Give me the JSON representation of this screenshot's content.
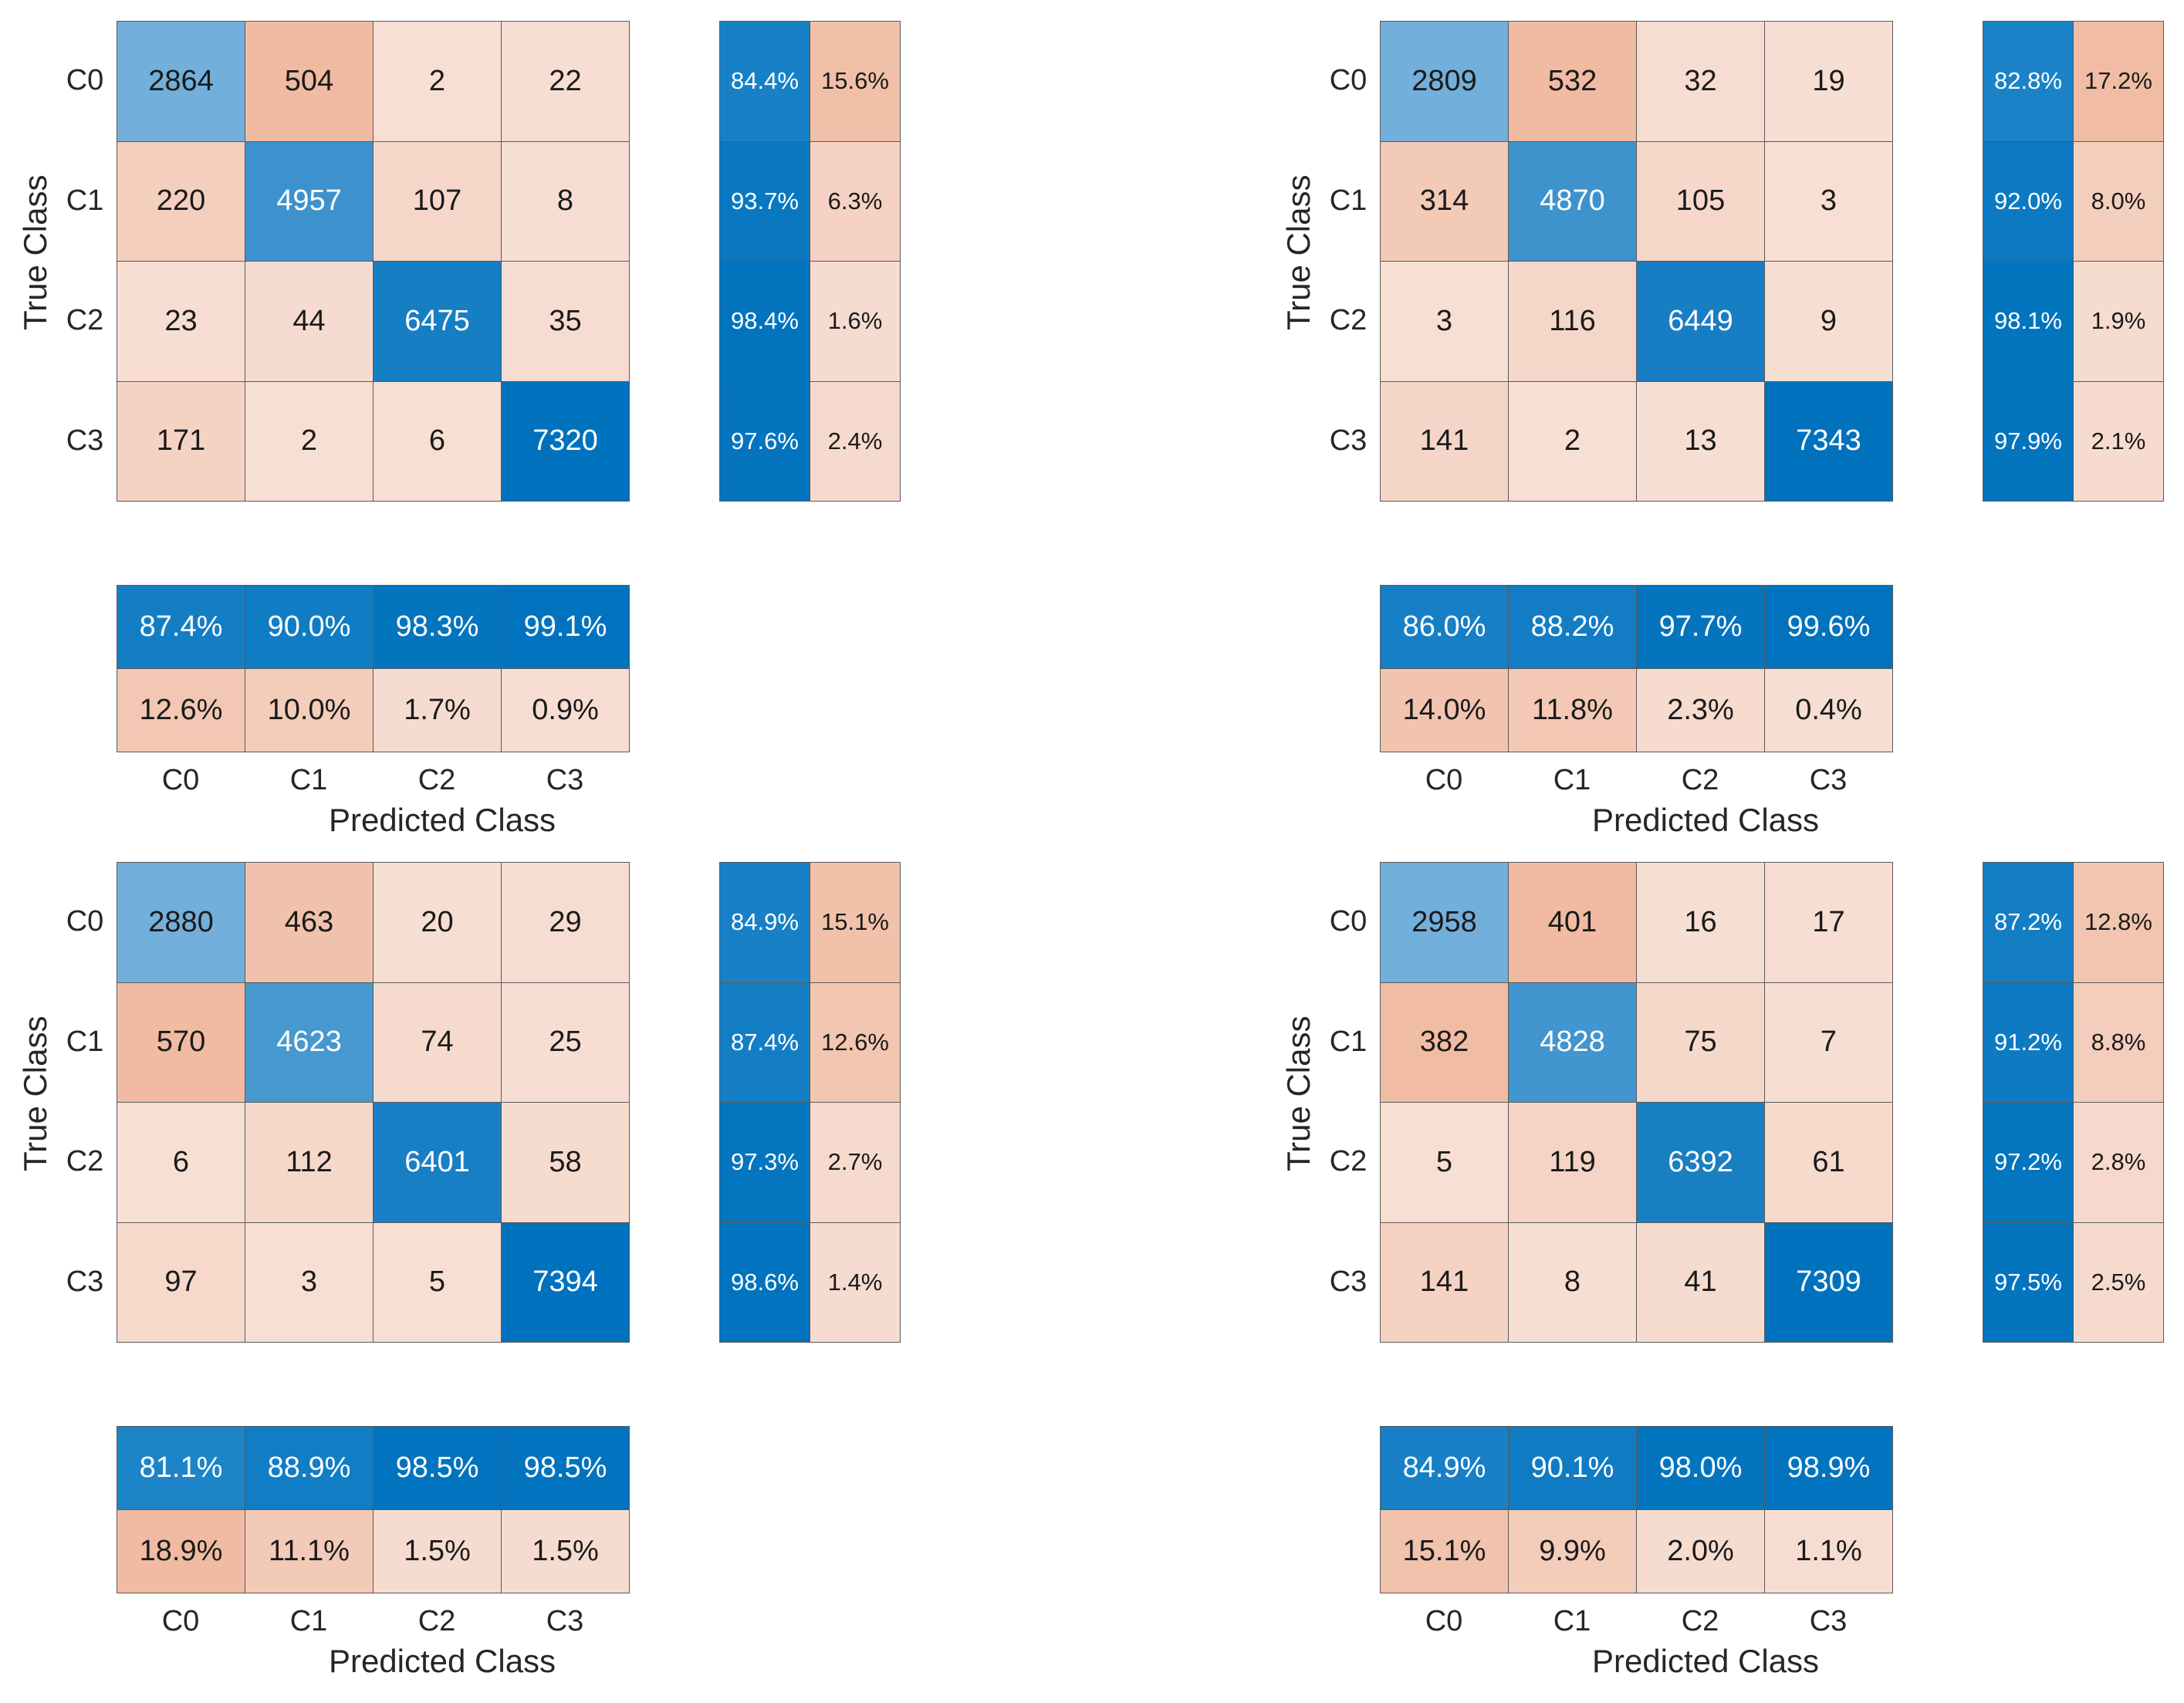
{
  "chart_data": [
    {
      "type": "heatmap",
      "ylabel": "True Class",
      "xlabel": "Predicted Class",
      "categories": [
        "C0",
        "C1",
        "C2",
        "C3"
      ],
      "matrix": [
        [
          2864,
          504,
          2,
          22
        ],
        [
          220,
          4957,
          107,
          8
        ],
        [
          23,
          44,
          6475,
          35
        ],
        [
          171,
          2,
          6,
          7320
        ]
      ],
      "row_summary": [
        [
          "84.4%",
          "15.6%"
        ],
        [
          "93.7%",
          "6.3%"
        ],
        [
          "98.4%",
          "1.6%"
        ],
        [
          "97.6%",
          "2.4%"
        ]
      ],
      "col_summary": [
        [
          "87.4%",
          "90.0%",
          "98.3%",
          "99.1%"
        ],
        [
          "12.6%",
          "10.0%",
          "1.7%",
          "0.9%"
        ]
      ]
    },
    {
      "type": "heatmap",
      "ylabel": "True Class",
      "xlabel": "Predicted Class",
      "categories": [
        "C0",
        "C1",
        "C2",
        "C3"
      ],
      "matrix": [
        [
          2809,
          532,
          32,
          19
        ],
        [
          314,
          4870,
          105,
          3
        ],
        [
          3,
          116,
          6449,
          9
        ],
        [
          141,
          2,
          13,
          7343
        ]
      ],
      "row_summary": [
        [
          "82.8%",
          "17.2%"
        ],
        [
          "92.0%",
          "8.0%"
        ],
        [
          "98.1%",
          "1.9%"
        ],
        [
          "97.9%",
          "2.1%"
        ]
      ],
      "col_summary": [
        [
          "86.0%",
          "88.2%",
          "97.7%",
          "99.6%"
        ],
        [
          "14.0%",
          "11.8%",
          "2.3%",
          "0.4%"
        ]
      ]
    },
    {
      "type": "heatmap",
      "ylabel": "True Class",
      "xlabel": "Predicted Class",
      "categories": [
        "C0",
        "C1",
        "C2",
        "C3"
      ],
      "matrix": [
        [
          2880,
          463,
          20,
          29
        ],
        [
          570,
          4623,
          74,
          25
        ],
        [
          6,
          112,
          6401,
          58
        ],
        [
          97,
          3,
          5,
          7394
        ]
      ],
      "row_summary": [
        [
          "84.9%",
          "15.1%"
        ],
        [
          "87.4%",
          "12.6%"
        ],
        [
          "97.3%",
          "2.7%"
        ],
        [
          "98.6%",
          "1.4%"
        ]
      ],
      "col_summary": [
        [
          "81.1%",
          "88.9%",
          "98.5%",
          "98.5%"
        ],
        [
          "18.9%",
          "11.1%",
          "1.5%",
          "1.5%"
        ]
      ]
    },
    {
      "type": "heatmap",
      "ylabel": "True Class",
      "xlabel": "Predicted Class",
      "categories": [
        "C0",
        "C1",
        "C2",
        "C3"
      ],
      "matrix": [
        [
          2958,
          401,
          16,
          17
        ],
        [
          382,
          4828,
          75,
          7
        ],
        [
          5,
          119,
          6392,
          61
        ],
        [
          141,
          8,
          41,
          7309
        ]
      ],
      "row_summary": [
        [
          "87.2%",
          "12.8%"
        ],
        [
          "91.2%",
          "8.8%"
        ],
        [
          "97.2%",
          "2.8%"
        ],
        [
          "97.5%",
          "2.5%"
        ]
      ],
      "col_summary": [
        [
          "84.9%",
          "90.1%",
          "98.0%",
          "98.9%"
        ],
        [
          "15.1%",
          "9.9%",
          "2.0%",
          "1.1%"
        ]
      ]
    }
  ],
  "colors": {
    "diag_light": "#80b6de",
    "diag_dark": "#0072bd",
    "offdiag_light": "#f7dfd4",
    "offdiag_dark": "#f0bba2",
    "summary_blue_light": "#1f85c9",
    "summary_blue_dark": "#0072bd",
    "grid_line": "#5a5a5a",
    "text_dark": "#1a1a1a",
    "text_light": "#ffffff"
  }
}
